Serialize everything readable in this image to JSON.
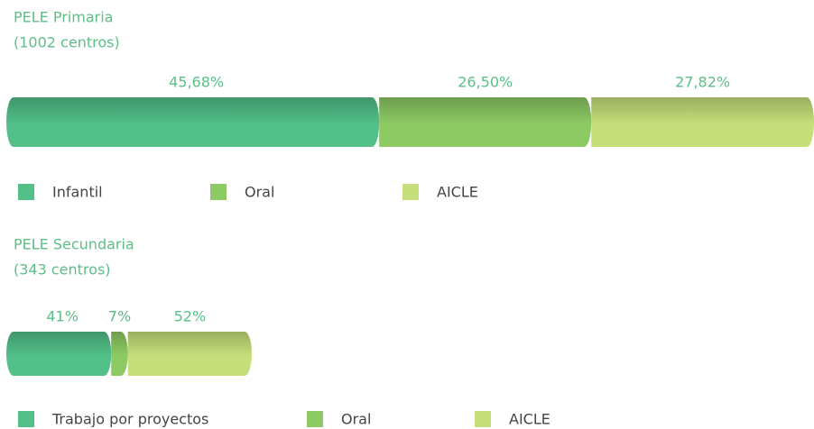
{
  "chart_data": [
    {
      "type": "bar",
      "orientation": "horizontal",
      "stacked": true,
      "title": "PELE Primaria",
      "subtitle": "(1002 centros)",
      "series": [
        {
          "name": "Infantil",
          "color": "#52c088",
          "values": [
            45.68
          ],
          "value_labels": [
            "45,68%"
          ]
        },
        {
          "name": "Oral",
          "color": "#8dca63",
          "values": [
            26.5
          ],
          "value_labels": [
            "26,50%"
          ]
        },
        {
          "name": "AICLE",
          "color": "#c6df7a",
          "values": [
            27.82
          ],
          "value_labels": [
            "27,82%"
          ]
        }
      ]
    },
    {
      "type": "bar",
      "orientation": "horizontal",
      "stacked": true,
      "title": "PELE Secundaria",
      "subtitle": "(343 centros)",
      "series": [
        {
          "name": "Trabajo por proyectos",
          "color": "#52c088",
          "values": [
            41
          ],
          "value_labels": [
            "41%"
          ]
        },
        {
          "name": "Oral",
          "color": "#8dca63",
          "values": [
            7
          ],
          "value_labels": [
            "7%"
          ]
        },
        {
          "name": "AICLE",
          "color": "#c6df7a",
          "values": [
            52
          ],
          "value_labels": [
            "52%"
          ]
        }
      ]
    }
  ]
}
